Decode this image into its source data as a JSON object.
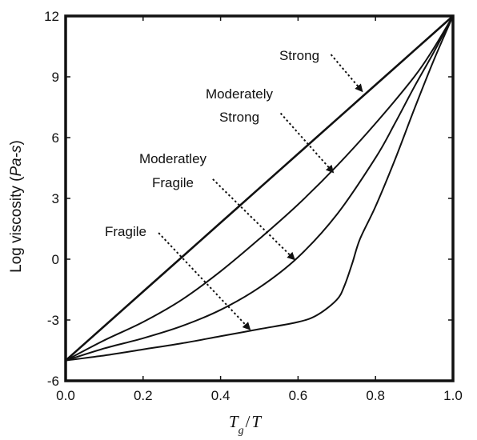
{
  "chart_data": {
    "type": "line",
    "title": "",
    "xlabel": {
      "main": "T",
      "sub": "g",
      "slash": "/",
      "denom": "T"
    },
    "ylabel": {
      "prefix": "Log viscosity (",
      "italic": "Pa-s",
      "suffix": ")"
    },
    "xlim": [
      0.0,
      1.0
    ],
    "ylim": [
      -6,
      12
    ],
    "xticks": [
      0.0,
      0.2,
      0.4,
      0.6,
      0.8,
      1.0
    ],
    "xtick_labels": [
      "0.0",
      "0.2",
      "0.4",
      "0.6",
      "0.8",
      "1.0"
    ],
    "yticks": [
      -6,
      -3,
      0,
      3,
      6,
      9,
      12
    ],
    "ytick_labels": [
      "-6",
      "-3",
      "0",
      "3",
      "6",
      "9",
      "12"
    ],
    "grid": false,
    "legend": "none",
    "series": [
      {
        "name": "Strong",
        "x": [
          0.0,
          0.1,
          0.2,
          0.3,
          0.4,
          0.5,
          0.6,
          0.7,
          0.8,
          0.9,
          1.0
        ],
        "y": [
          -5.0,
          -3.3,
          -1.6,
          0.1,
          1.8,
          3.5,
          5.2,
          6.9,
          8.6,
          10.3,
          12.0
        ]
      },
      {
        "name": "Moderately Strong",
        "x": [
          0.0,
          0.1,
          0.2,
          0.3,
          0.4,
          0.5,
          0.6,
          0.7,
          0.8,
          0.9,
          0.95,
          1.0
        ],
        "y": [
          -5.0,
          -4.0,
          -3.1,
          -2.0,
          -0.6,
          1.0,
          2.7,
          4.6,
          6.7,
          9.0,
          10.4,
          12.0
        ]
      },
      {
        "name": "Moderatley Fragile",
        "x": [
          0.0,
          0.1,
          0.2,
          0.3,
          0.4,
          0.5,
          0.6,
          0.7,
          0.8,
          0.85,
          0.9,
          0.95,
          1.0
        ],
        "y": [
          -5.0,
          -4.4,
          -3.9,
          -3.3,
          -2.5,
          -1.4,
          0.1,
          2.2,
          5.0,
          6.7,
          8.5,
          10.2,
          12.0
        ]
      },
      {
        "name": "Fragile",
        "x": [
          0.0,
          0.1,
          0.2,
          0.3,
          0.4,
          0.5,
          0.6,
          0.65,
          0.7,
          0.72,
          0.74,
          0.76,
          0.8,
          0.85,
          0.9,
          0.95,
          1.0
        ],
        "y": [
          -5.0,
          -4.75,
          -4.45,
          -4.15,
          -3.8,
          -3.45,
          -3.1,
          -2.75,
          -2.0,
          -1.3,
          -0.2,
          1.0,
          2.6,
          4.9,
          7.4,
          9.8,
          12.0
        ]
      }
    ],
    "annotations": [
      {
        "lines": [
          "Strong"
        ],
        "arrow_from": [
          0.685,
          10.1
        ],
        "arrow_to": [
          0.765,
          8.3
        ]
      },
      {
        "lines": [
          "Moderately",
          "Strong"
        ],
        "arrow_from": [
          0.555,
          7.2
        ],
        "arrow_to": [
          0.69,
          4.3
        ]
      },
      {
        "lines": [
          "Moderatley",
          "Fragile"
        ],
        "arrow_from": [
          0.38,
          3.95
        ],
        "arrow_to": [
          0.59,
          0.0
        ]
      },
      {
        "lines": [
          "Fragile"
        ],
        "arrow_from": [
          0.24,
          1.3
        ],
        "arrow_to": [
          0.475,
          -3.45
        ]
      }
    ]
  }
}
